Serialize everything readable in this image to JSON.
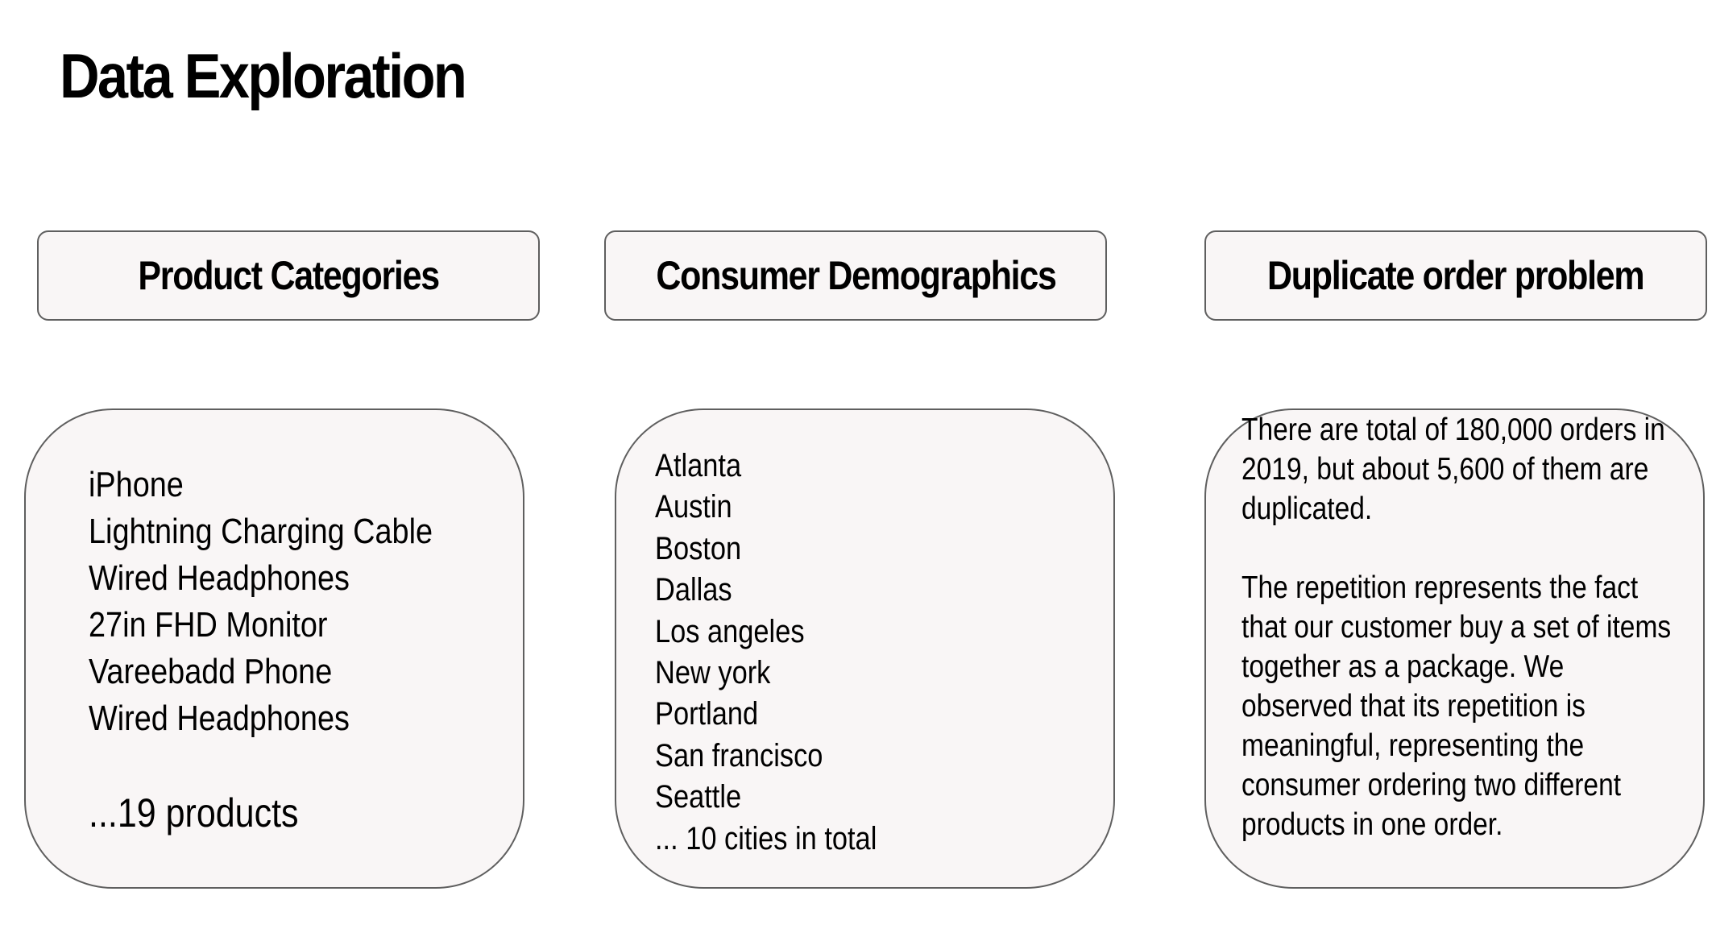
{
  "page_title": "Data Exploration",
  "sections": {
    "products": {
      "header": "Product Categories",
      "items": [
        "iPhone",
        "Lightning Charging Cable",
        "Wired Headphones",
        "27in FHD Monitor",
        "Vareebadd Phone",
        "Wired Headphones"
      ],
      "total": "...19 products"
    },
    "demographics": {
      "header": "Consumer Demographics",
      "items": [
        "Atlanta",
        "Austin",
        "Boston",
        "Dallas",
        "Los angeles",
        "New york",
        "Portland",
        "San francisco",
        "Seattle",
        "... 10 cities in total"
      ]
    },
    "duplicates": {
      "header": "Duplicate order problem",
      "paragraphs": [
        "There are total of 180,000 orders in 2019, but about 5,600 of them are duplicated.",
        "The repetition represents the fact that our customer buy a set of items together as a package. We observed that its repetition is meaningful, representing the consumer ordering two different products in one order."
      ]
    }
  }
}
